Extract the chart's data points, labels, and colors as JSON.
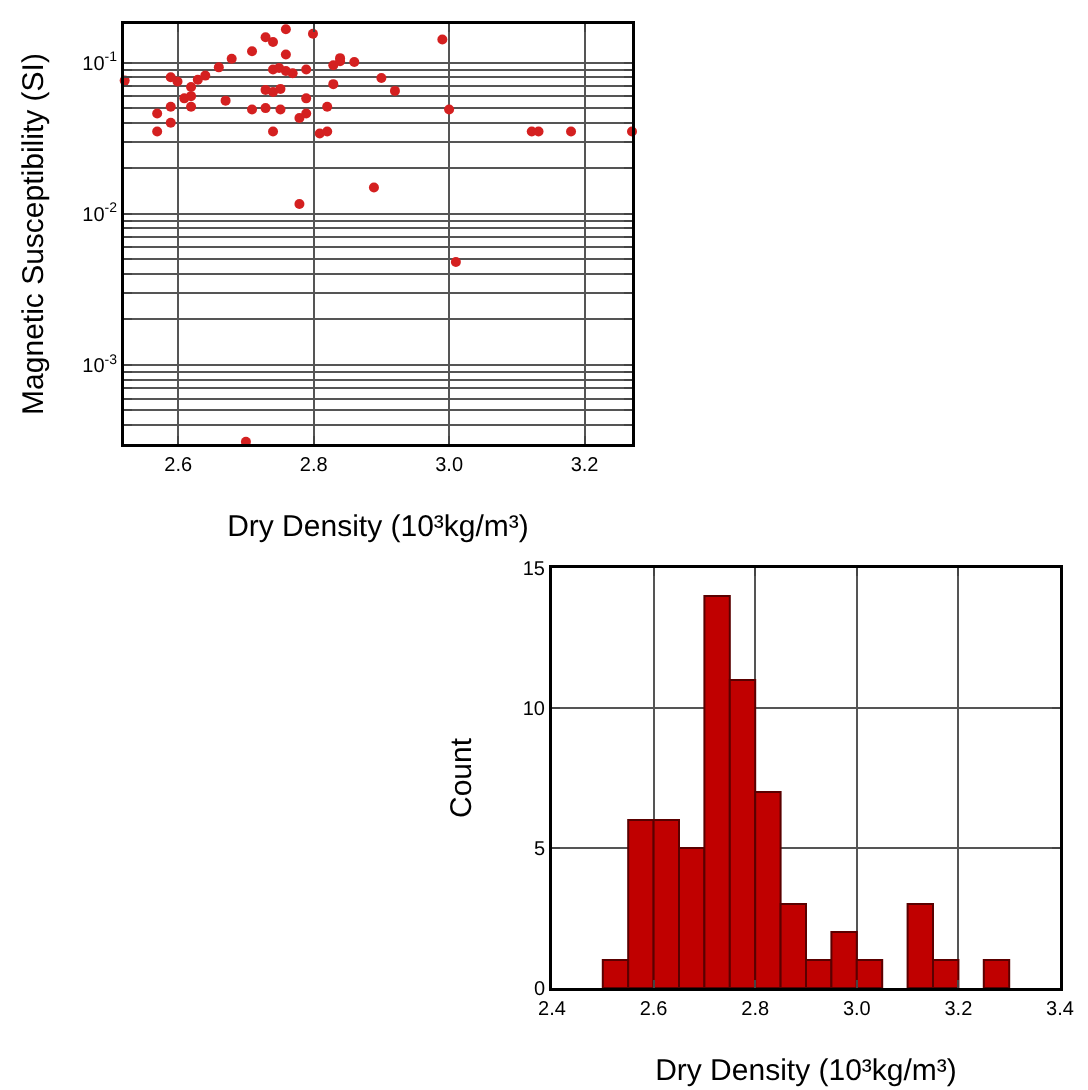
{
  "chart_data": [
    {
      "type": "scatter",
      "xlabel": "Dry Density (10³kg/m³)",
      "ylabel": "Magnetic Susceptibility (SI)",
      "color": "#d42020",
      "marker": "circle",
      "log": "y",
      "grid": true,
      "x": [
        2.521,
        2.569,
        2.569,
        2.589,
        2.589,
        2.589,
        2.599,
        2.609,
        2.619,
        2.619,
        2.619,
        2.629,
        2.64,
        2.66,
        2.67,
        2.679,
        2.709,
        2.709,
        2.729,
        2.729,
        2.729,
        2.74,
        2.74,
        2.74,
        2.74,
        2.749,
        2.751,
        2.751,
        2.759,
        2.759,
        2.759,
        2.769,
        2.779,
        2.779,
        2.789,
        2.789,
        2.789,
        2.799,
        2.809,
        2.82,
        2.82,
        2.829,
        2.829,
        2.839,
        2.839,
        2.86,
        2.889,
        2.9,
        2.92,
        2.99,
        3.0,
        3.01,
        3.122,
        3.132,
        3.18,
        3.27,
        2.7
      ],
      "values": [
        0.076,
        0.046,
        0.035,
        0.08,
        0.051,
        0.04,
        0.075,
        0.058,
        0.069,
        0.06,
        0.051,
        0.077,
        0.082,
        0.093,
        0.056,
        0.106,
        0.119,
        0.049,
        0.147,
        0.066,
        0.05,
        0.137,
        0.09,
        0.064,
        0.035,
        0.092,
        0.067,
        0.049,
        0.166,
        0.113,
        0.088,
        0.085,
        0.043,
        0.0116,
        0.09,
        0.058,
        0.046,
        0.155,
        0.034,
        0.051,
        0.035,
        0.096,
        0.072,
        0.107,
        0.102,
        0.101,
        0.0149,
        0.079,
        0.065,
        0.142,
        0.049,
        0.0048,
        0.035,
        0.035,
        0.035,
        0.035,
        0.00031
      ],
      "xlim": [
        2.52,
        3.27
      ],
      "xticks": [
        2.6,
        2.8,
        {
          "value": 3,
          "label": "3.0"
        },
        3.2
      ],
      "ylim": [
        0.0003,
        0.18
      ],
      "yticks": [
        {
          "value": 0.0003,
          "label": null
        },
        {
          "value": 0.0004,
          "label": null
        },
        {
          "value": 0.0005,
          "label": null
        },
        {
          "value": 0.0006,
          "label": null
        },
        {
          "value": 0.0007,
          "label": null
        },
        {
          "value": 0.0008,
          "label": null
        },
        {
          "value": 0.0009,
          "label": null
        },
        {
          "value": 0.001,
          "label": "10$^{-3}$"
        },
        {
          "value": 0.002,
          "label": null
        },
        {
          "value": 0.003,
          "label": null
        },
        {
          "value": 0.004,
          "label": null
        },
        {
          "value": 0.005,
          "label": null
        },
        {
          "value": 0.006,
          "label": null
        },
        {
          "value": 0.007,
          "label": null
        },
        {
          "value": 0.008,
          "label": null
        },
        {
          "value": 0.009,
          "label": null
        },
        {
          "value": 0.01,
          "label": "10$^{-2}$"
        },
        {
          "value": 0.02,
          "label": null
        },
        {
          "value": 0.03,
          "label": null
        },
        {
          "value": 0.04,
          "label": null
        },
        {
          "value": 0.05,
          "label": null
        },
        {
          "value": 0.06,
          "label": null
        },
        {
          "value": 0.07,
          "label": null
        },
        {
          "value": 0.08,
          "label": null
        },
        {
          "value": 0.09,
          "label": null
        },
        {
          "value": 0.1,
          "label": "10$^{-1}$"
        }
      ]
    },
    {
      "type": "histogram",
      "xlabel": "Dry Density (10³kg/m³)",
      "ylabel": "Count",
      "color": "#c00000",
      "grid": true,
      "bins": [
        2.5,
        2.55,
        2.6,
        2.65,
        2.7,
        2.75,
        2.8,
        2.85,
        2.9,
        2.95,
        3.0,
        3.05,
        3.1,
        3.15,
        3.2,
        3.25,
        3.3
      ],
      "values": [
        1,
        6,
        6,
        5,
        14,
        11,
        7,
        3,
        1,
        2,
        1,
        0,
        3,
        1,
        0,
        1
      ],
      "xlim": [
        2.4,
        3.4
      ],
      "xticks": [
        2.4,
        2.6,
        2.8,
        {
          "value": 3,
          "label": "3.0"
        },
        3.2,
        3.4
      ],
      "ylim": [
        0,
        15
      ],
      "yticks": [
        0,
        5,
        10,
        15
      ]
    }
  ]
}
